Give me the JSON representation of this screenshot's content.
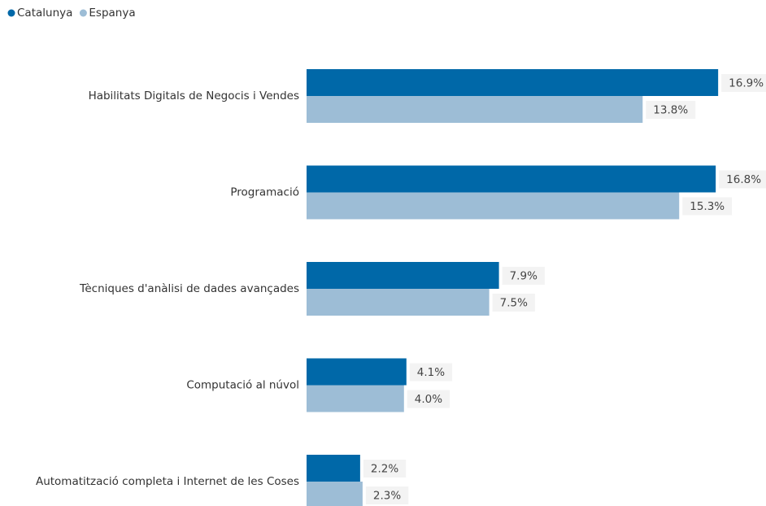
{
  "chart_data": {
    "type": "bar",
    "orientation": "horizontal",
    "categories": [
      "Habilitats Digitals de Negocis i Vendes",
      "Programació",
      "Tècniques d'anàlisi de dades avançades",
      "Computació al núvol",
      "Automatització completa i Internet de les Coses"
    ],
    "series": [
      {
        "name": "Catalunya",
        "color": "#0068a8",
        "values": [
          16.9,
          16.8,
          7.9,
          4.1,
          2.2
        ],
        "value_labels": [
          "16.9%",
          "16.8%",
          "7.9%",
          "4.1%",
          "2.2%"
        ]
      },
      {
        "name": "Espanya",
        "color": "#9dbdd6",
        "values": [
          13.8,
          15.3,
          7.5,
          4.0,
          2.3
        ],
        "value_labels": [
          "13.8%",
          "15.3%",
          "7.5%",
          "4.0%",
          "2.3%"
        ]
      }
    ]
  }
}
